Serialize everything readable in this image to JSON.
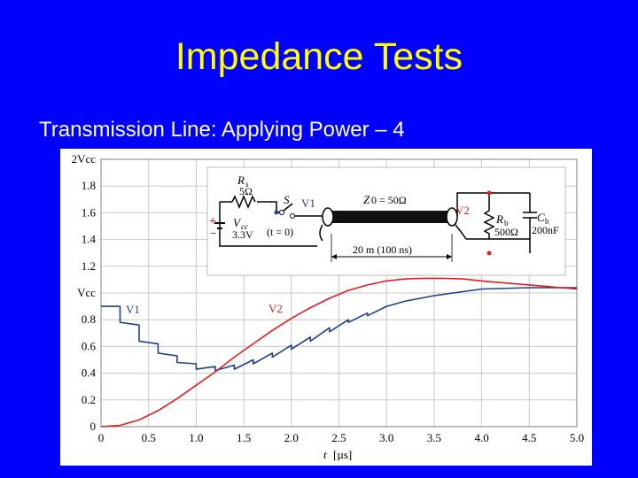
{
  "slide": {
    "title": "Impedance Tests",
    "subtitle": "Transmission Line: Applying Power – 4"
  },
  "chart_data": {
    "type": "line",
    "x_ticks": [
      "0",
      "0.5",
      "1.0",
      "1.5",
      "2.0",
      "2.5",
      "3.0",
      "3.5",
      "4.0",
      "4.5",
      "5.0"
    ],
    "y_ticks": [
      "0",
      "0.2",
      "0.4",
      "0.6",
      "0.8",
      "Vcc",
      "1.2",
      "1.4",
      "1.6",
      "1.8",
      "2Vcc"
    ],
    "xlabel_var": "t",
    "xlabel_unit": "[µs]",
    "xlim": [
      0,
      5
    ],
    "ylim": [
      0,
      2
    ],
    "grid": true,
    "series": [
      {
        "name": "V1",
        "color": "#1f3f8f",
        "x": [
          0,
          0.2,
          0.2,
          0.4,
          0.4,
          0.6,
          0.6,
          0.8,
          0.8,
          1.0,
          1.0,
          1.2,
          1.2,
          1.4,
          1.4,
          1.6,
          1.6,
          1.8,
          1.8,
          2.0,
          2.0,
          2.2,
          2.2,
          2.4,
          2.4,
          2.6,
          2.6,
          2.8,
          2.8,
          3.0,
          3.2,
          3.5,
          3.8,
          4.0,
          4.5,
          5.0
        ],
        "y": [
          0.9,
          0.9,
          0.78,
          0.76,
          0.64,
          0.62,
          0.55,
          0.53,
          0.48,
          0.47,
          0.43,
          0.45,
          0.42,
          0.46,
          0.43,
          0.5,
          0.47,
          0.55,
          0.52,
          0.61,
          0.58,
          0.67,
          0.64,
          0.74,
          0.71,
          0.8,
          0.78,
          0.85,
          0.83,
          0.9,
          0.94,
          0.98,
          1.01,
          1.03,
          1.04,
          1.04
        ]
      },
      {
        "name": "V2",
        "color": "#dd1f1f",
        "x": [
          0,
          0.2,
          0.4,
          0.6,
          0.8,
          1.0,
          1.2,
          1.4,
          1.6,
          1.8,
          2.0,
          2.2,
          2.4,
          2.6,
          2.8,
          3.0,
          3.2,
          3.4,
          3.6,
          3.8,
          4.0,
          4.5,
          5.0
        ],
        "y": [
          0,
          0.01,
          0.05,
          0.12,
          0.21,
          0.31,
          0.41,
          0.52,
          0.62,
          0.72,
          0.81,
          0.89,
          0.96,
          1.02,
          1.06,
          1.09,
          1.105,
          1.11,
          1.11,
          1.105,
          1.09,
          1.06,
          1.03
        ]
      }
    ],
    "circuit": {
      "rs_label": "R",
      "rs_sub": "s",
      "rs_value": "5Ω",
      "vcc_label": "V",
      "vcc_sub": "cc",
      "vcc_value": "3.3V",
      "plus_sign": "+",
      "minus_sign": "−",
      "switch_label": "S",
      "switch_time": "(t = 0)",
      "v1_label": "V1",
      "z0_label": "Z",
      "z0_value": "0 = 50Ω",
      "length_label": "20 m (100 ns)",
      "v2_label": "V2",
      "rb_label": "R",
      "rb_sub": "b",
      "rb_value": "500Ω",
      "cb_label": "C",
      "cb_sub": "b",
      "cb_value": "200nF"
    }
  }
}
